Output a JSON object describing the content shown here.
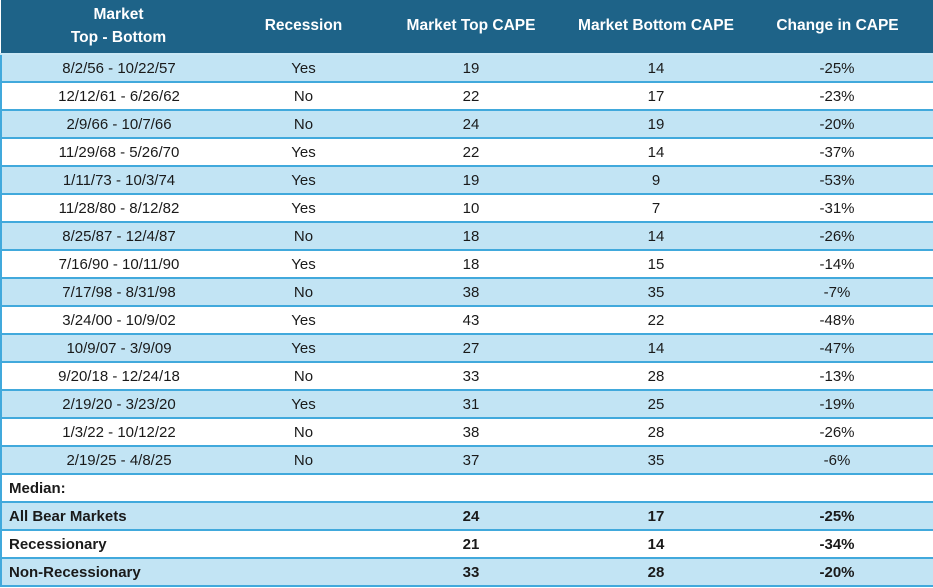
{
  "table": {
    "header": {
      "col1_line1": "Market",
      "col1_line2": "Top - Bottom",
      "col2": "Recession",
      "col3": "Market Top CAPE",
      "col4": "Market Bottom CAPE",
      "col5": "Change in CAPE"
    }
  },
  "chart_data": {
    "type": "table",
    "columns": [
      "Market Top - Bottom",
      "Recession",
      "Market Top CAPE",
      "Market Bottom CAPE",
      "Change in CAPE"
    ],
    "rows": [
      [
        "8/2/56 - 10/22/57",
        "Yes",
        "19",
        "14",
        "-25%"
      ],
      [
        "12/12/61 - 6/26/62",
        "No",
        "22",
        "17",
        "-23%"
      ],
      [
        "2/9/66 - 10/7/66",
        "No",
        "24",
        "19",
        "-20%"
      ],
      [
        "11/29/68 - 5/26/70",
        "Yes",
        "22",
        "14",
        "-37%"
      ],
      [
        "1/11/73 - 10/3/74",
        "Yes",
        "19",
        "9",
        "-53%"
      ],
      [
        "11/28/80 - 8/12/82",
        "Yes",
        "10",
        "7",
        "-31%"
      ],
      [
        "8/25/87 - 12/4/87",
        "No",
        "18",
        "14",
        "-26%"
      ],
      [
        "7/16/90 - 10/11/90",
        "Yes",
        "18",
        "15",
        "-14%"
      ],
      [
        "7/17/98 - 8/31/98",
        "No",
        "38",
        "35",
        "-7%"
      ],
      [
        "3/24/00 - 10/9/02",
        "Yes",
        "43",
        "22",
        "-48%"
      ],
      [
        "10/9/07 - 3/9/09",
        "Yes",
        "27",
        "14",
        "-47%"
      ],
      [
        "9/20/18 - 12/24/18",
        "No",
        "33",
        "28",
        "-13%"
      ],
      [
        "2/19/20 - 3/23/20",
        "Yes",
        "31",
        "25",
        "-19%"
      ],
      [
        "1/3/22 - 10/12/22",
        "No",
        "38",
        "28",
        "-26%"
      ],
      [
        "2/19/25 - 4/8/25",
        "No",
        "37",
        "35",
        "-6%"
      ]
    ],
    "median_label": "Median:",
    "summary_rows": [
      [
        "All Bear Markets",
        "",
        "24",
        "17",
        "-25%"
      ],
      [
        "Recessionary",
        "",
        "21",
        "14",
        "-34%"
      ],
      [
        "Non-Recessionary",
        "",
        "33",
        "28",
        "-20%"
      ]
    ]
  },
  "colors": {
    "header_bg": "#1E6388",
    "header_text": "#FFFFFF",
    "header_border": "#C9E7F5",
    "row_alt_bg": "#C2E4F4",
    "row_bg": "#FFFFFF",
    "separator": "#41A9DC",
    "body_text": "#1A1A1A"
  }
}
